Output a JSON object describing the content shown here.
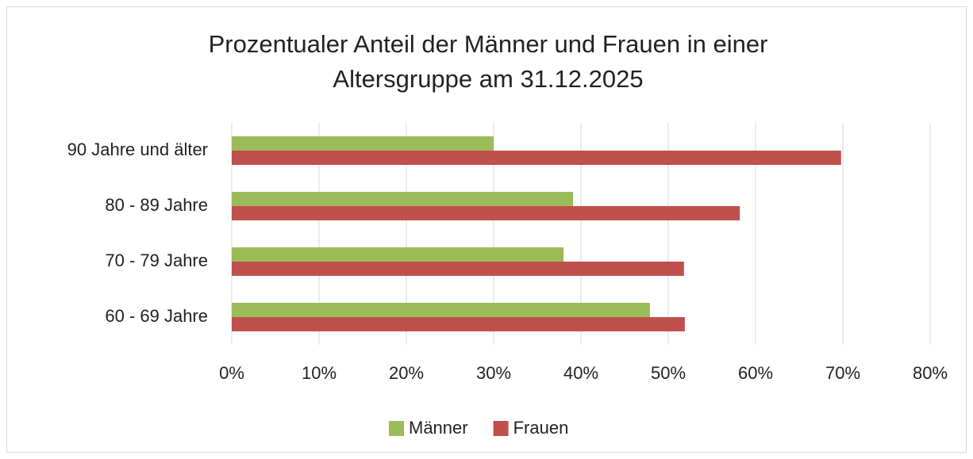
{
  "chart_data": {
    "type": "barh",
    "title": "Prozentualer Anteil der Männer und Frauen in einer Altersgruppe am 31.12.2025",
    "categories": [
      "90 Jahre und älter",
      "80 - 89 Jahre",
      "70 - 79 Jahre",
      "60 - 69 Jahre"
    ],
    "series": [
      {
        "name": "Männer",
        "color": "#9bbb59",
        "values": [
          30,
          39.1,
          38,
          47.9
        ]
      },
      {
        "name": "Frauen",
        "color": "#c0504d",
        "values": [
          69.8,
          58.2,
          51.8,
          51.9
        ]
      }
    ],
    "xlim": [
      0,
      80
    ],
    "xticks": [
      {
        "value": 0,
        "label": "0%"
      },
      {
        "value": 10,
        "label": "10%"
      },
      {
        "value": 20,
        "label": "20%"
      },
      {
        "value": 30,
        "label": "30%"
      },
      {
        "value": 40,
        "label": "40%"
      },
      {
        "value": 50,
        "label": "50%"
      },
      {
        "value": 60,
        "label": "60%"
      },
      {
        "value": 70,
        "label": "70%"
      },
      {
        "value": 80,
        "label": "80%"
      }
    ],
    "grid": true,
    "legend": "bottom"
  }
}
